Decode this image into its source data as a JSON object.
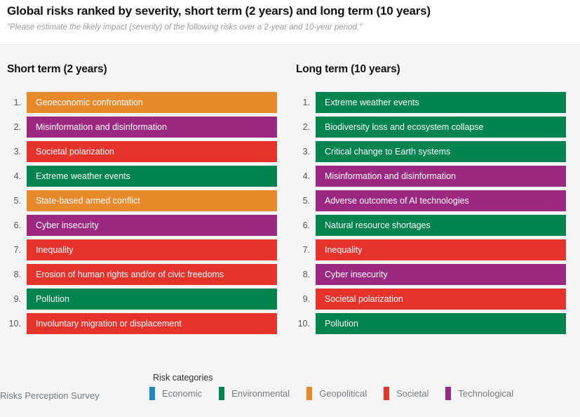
{
  "header": {
    "title": "Global risks ranked by severity, short term (2 years) and long term (10 years)",
    "subtitle": "\"Please estimate the likely impact (severity) of the following risks over a 2-year and 10-year period.\""
  },
  "columns": [
    {
      "title": "Short term (2 years)",
      "items": [
        {
          "rank": "1.",
          "label": "Geoeconomic confrontation",
          "category": "geopolitical"
        },
        {
          "rank": "2.",
          "label": "Misinformation and disinformation",
          "category": "technological"
        },
        {
          "rank": "3.",
          "label": "Societal polarization",
          "category": "societal"
        },
        {
          "rank": "4.",
          "label": "Extreme weather events",
          "category": "environmental"
        },
        {
          "rank": "5.",
          "label": "State-based armed conflict",
          "category": "geopolitical"
        },
        {
          "rank": "6.",
          "label": "Cyber insecurity",
          "category": "technological"
        },
        {
          "rank": "7.",
          "label": "Inequality",
          "category": "societal"
        },
        {
          "rank": "8.",
          "label": "Erosion of human rights and/or of civic freedoms",
          "category": "societal"
        },
        {
          "rank": "9.",
          "label": "Pollution",
          "category": "environmental"
        },
        {
          "rank": "10.",
          "label": "Involuntary migration or displacement",
          "category": "societal"
        }
      ]
    },
    {
      "title": "Long term (10 years)",
      "items": [
        {
          "rank": "1.",
          "label": "Extreme weather events",
          "category": "environmental"
        },
        {
          "rank": "2.",
          "label": "Biodiversity loss and ecosystem collapse",
          "category": "environmental"
        },
        {
          "rank": "3.",
          "label": "Critical change to Earth systems",
          "category": "environmental"
        },
        {
          "rank": "4.",
          "label": "Misinformation and disinformation",
          "category": "technological"
        },
        {
          "rank": "5.",
          "label": "Adverse outcomes of AI technologies",
          "category": "technological"
        },
        {
          "rank": "6.",
          "label": "Natural resource shortages",
          "category": "environmental"
        },
        {
          "rank": "7.",
          "label": "Inequality",
          "category": "societal"
        },
        {
          "rank": "8.",
          "label": "Cyber insecurity",
          "category": "technological"
        },
        {
          "rank": "9.",
          "label": "Societal polarization",
          "category": "societal"
        },
        {
          "rank": "10.",
          "label": "Pollution",
          "category": "environmental"
        }
      ]
    }
  ],
  "legend": {
    "title": "Risk categories",
    "items": [
      {
        "label": "Economic",
        "category": "economic"
      },
      {
        "label": "Environmental",
        "category": "environmental"
      },
      {
        "label": "Geopolitical",
        "category": "geopolitical"
      },
      {
        "label": "Societal",
        "category": "societal"
      },
      {
        "label": "Technological",
        "category": "technological"
      }
    ]
  },
  "source": "Risks Perception Survey",
  "colors": {
    "economic": "#1f87c9",
    "environmental": "#00844f",
    "geopolitical": "#e8892c",
    "societal": "#e5332c",
    "technological": "#9b2981"
  },
  "chart_data": {
    "type": "table",
    "title": "Global risks ranked by severity, short term (2 years) and long term (10 years)",
    "subtitle": "\"Please estimate the likely impact (severity) of the following risks over a 2-year and 10-year period.\"",
    "legend_position": "bottom",
    "legend": [
      "Economic",
      "Environmental",
      "Geopolitical",
      "Societal",
      "Technological"
    ],
    "lists": [
      {
        "name": "Short term (2 years)",
        "ranking": [
          {
            "rank": 1,
            "risk": "Geoeconomic confrontation",
            "category": "Geopolitical"
          },
          {
            "rank": 2,
            "risk": "Misinformation and disinformation",
            "category": "Technological"
          },
          {
            "rank": 3,
            "risk": "Societal polarization",
            "category": "Societal"
          },
          {
            "rank": 4,
            "risk": "Extreme weather events",
            "category": "Environmental"
          },
          {
            "rank": 5,
            "risk": "State-based armed conflict",
            "category": "Geopolitical"
          },
          {
            "rank": 6,
            "risk": "Cyber insecurity",
            "category": "Technological"
          },
          {
            "rank": 7,
            "risk": "Inequality",
            "category": "Societal"
          },
          {
            "rank": 8,
            "risk": "Erosion of human rights and/or of civic freedoms",
            "category": "Societal"
          },
          {
            "rank": 9,
            "risk": "Pollution",
            "category": "Environmental"
          },
          {
            "rank": 10,
            "risk": "Involuntary migration or displacement",
            "category": "Societal"
          }
        ]
      },
      {
        "name": "Long term (10 years)",
        "ranking": [
          {
            "rank": 1,
            "risk": "Extreme weather events",
            "category": "Environmental"
          },
          {
            "rank": 2,
            "risk": "Biodiversity loss and ecosystem collapse",
            "category": "Environmental"
          },
          {
            "rank": 3,
            "risk": "Critical change to Earth systems",
            "category": "Environmental"
          },
          {
            "rank": 4,
            "risk": "Misinformation and disinformation",
            "category": "Technological"
          },
          {
            "rank": 5,
            "risk": "Adverse outcomes of AI technologies",
            "category": "Technological"
          },
          {
            "rank": 6,
            "risk": "Natural resource shortages",
            "category": "Environmental"
          },
          {
            "rank": 7,
            "risk": "Inequality",
            "category": "Societal"
          },
          {
            "rank": 8,
            "risk": "Cyber insecurity",
            "category": "Technological"
          },
          {
            "rank": 9,
            "risk": "Societal polarization",
            "category": "Societal"
          },
          {
            "rank": 10,
            "risk": "Pollution",
            "category": "Environmental"
          }
        ]
      }
    ]
  }
}
